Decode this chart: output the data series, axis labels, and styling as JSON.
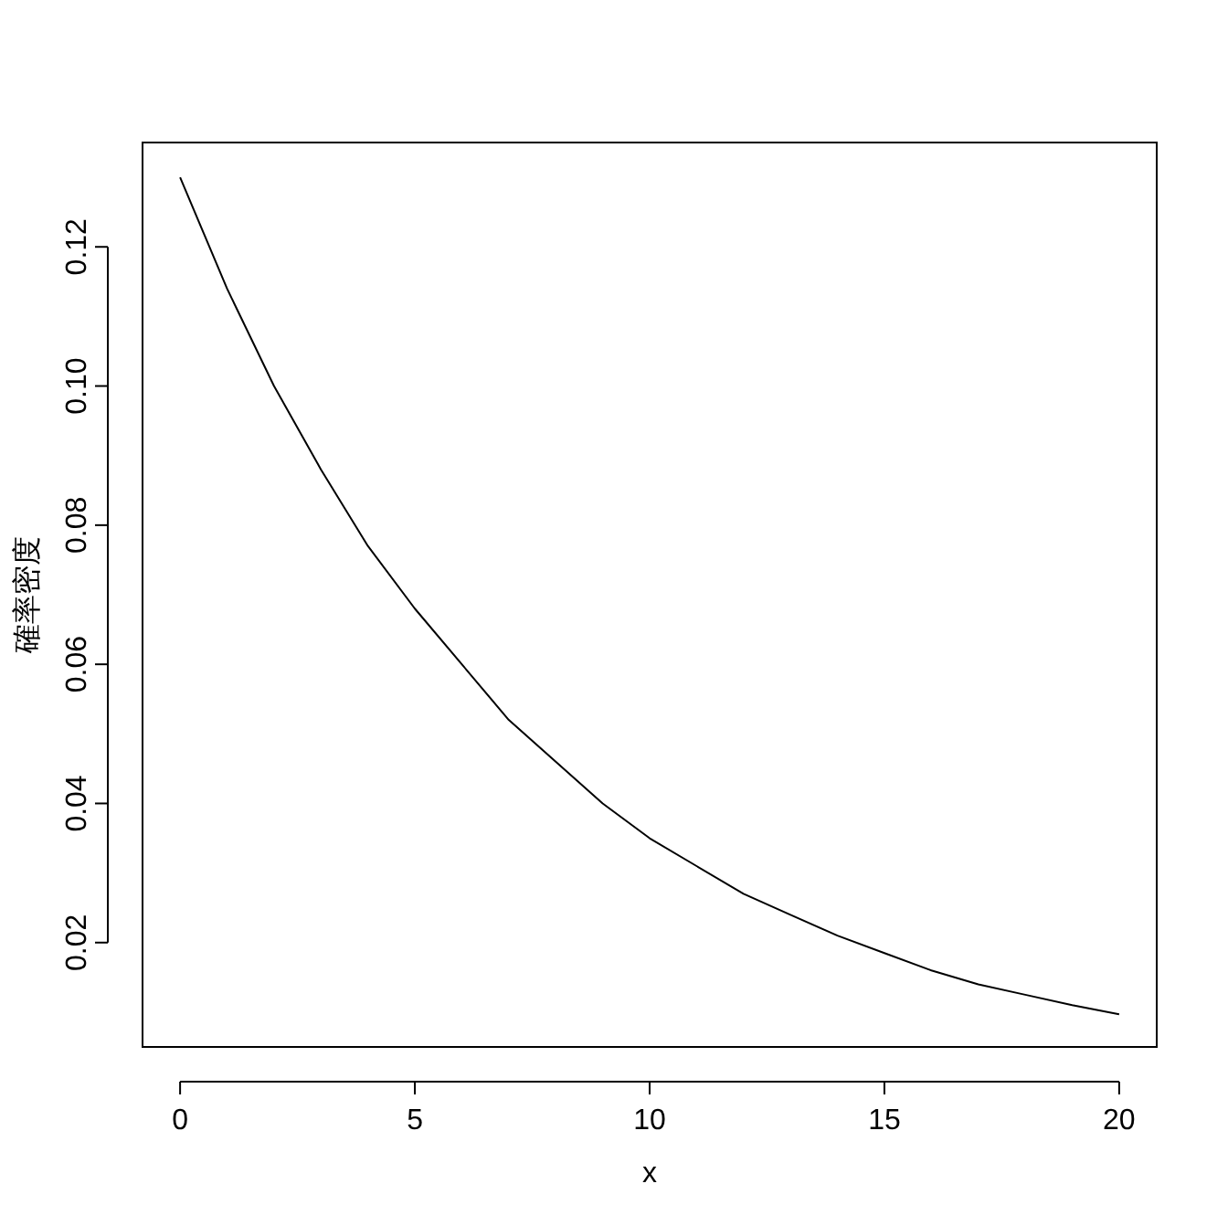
{
  "chart_data": {
    "type": "line",
    "xlabel": "x",
    "ylabel": "確率密度",
    "x": [
      0,
      1,
      2,
      3,
      4,
      5,
      6,
      7,
      8,
      9,
      10,
      11,
      12,
      13,
      14,
      15,
      16,
      17,
      18,
      19,
      20
    ],
    "values": [
      0.13,
      0.114,
      0.1,
      0.088,
      0.077,
      0.068,
      0.06,
      0.052,
      0.046,
      0.04,
      0.035,
      0.031,
      0.027,
      0.024,
      0.021,
      0.0185,
      0.016,
      0.014,
      0.0125,
      0.011,
      0.0097
    ],
    "color": "#000000",
    "xlim": [
      -0.8,
      20.8
    ],
    "ylim": [
      0.005,
      0.135
    ],
    "xticks": [
      0,
      5,
      10,
      15,
      20
    ],
    "yticks": [
      0.02,
      0.04,
      0.06,
      0.08,
      {
        "value": 0.1,
        "label": "0.10"
      },
      0.12
    ]
  }
}
